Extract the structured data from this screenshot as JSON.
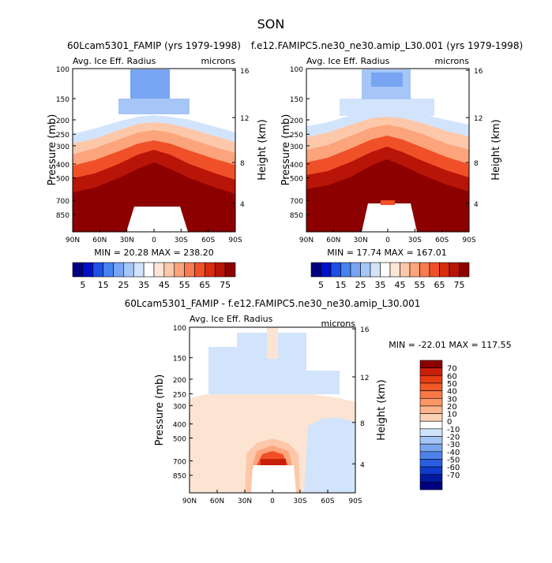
{
  "figure_title": "SON",
  "chart_data": [
    {
      "type": "heatmap",
      "id": "p1",
      "title": "60Lcam5301_FAMIP (yrs 1979-1998)",
      "left_label": "Avg. Ice Eff. Radius",
      "right_label": "microns",
      "ylabel": "Pressure (mb)",
      "y2label": "Height (km)",
      "pressure_ticks": [
        "100",
        "150",
        "200",
        "250",
        "300",
        "400",
        "500",
        "700",
        "850"
      ],
      "height_ticks": [
        "16",
        "12",
        "8",
        "4"
      ],
      "lat_ticks": [
        "90N",
        "60N",
        "30N",
        "0",
        "30S",
        "60S",
        "90S"
      ],
      "stats": "MIN =  20.28   MAX = 238.20",
      "field_range": [
        20.28,
        238.2
      ]
    },
    {
      "type": "heatmap",
      "id": "p2",
      "title": "f.e12.FAMIPC5.ne30_ne30.amip_L30.001 (yrs 1979-1998)",
      "left_label": "Avg. Ice Eff. Radius",
      "right_label": "microns",
      "ylabel": "Pressure (mb)",
      "y2label": "Height (km)",
      "pressure_ticks": [
        "100",
        "150",
        "200",
        "250",
        "300",
        "400",
        "500",
        "700",
        "850"
      ],
      "height_ticks": [
        "16",
        "12",
        "8",
        "4"
      ],
      "lat_ticks": [
        "90N",
        "60N",
        "30N",
        "0",
        "30S",
        "60S",
        "90S"
      ],
      "stats": "MIN =  17.74   MAX = 167.01",
      "field_range": [
        17.74,
        167.01
      ]
    },
    {
      "type": "heatmap",
      "id": "p3",
      "title": "60Lcam5301_FAMIP - f.e12.FAMIPC5.ne30_ne30.amip_L30.001",
      "left_label": "Avg. Ice Eff. Radius",
      "right_label": "microns",
      "ylabel": "Pressure (mb)",
      "y2label": "Height (km)",
      "pressure_ticks": [
        "100",
        "150",
        "200",
        "250",
        "300",
        "400",
        "500",
        "700",
        "850"
      ],
      "height_ticks": [
        "16",
        "12",
        "8",
        "4"
      ],
      "lat_ticks": [
        "90N",
        "60N",
        "30N",
        "0",
        "30S",
        "60S",
        "90S"
      ],
      "stats": "MIN = -22.01   MAX = 117.55",
      "field_range": [
        -22.01,
        117.55
      ]
    }
  ],
  "colorbar_abs": {
    "labels": [
      "5",
      "15",
      "25",
      "35",
      "45",
      "55",
      "65",
      "75"
    ],
    "colors": [
      "#000080",
      "#0010c8",
      "#1e50e6",
      "#4682f0",
      "#78a4f4",
      "#a6c6f8",
      "#d2e4fc",
      "#ffffff",
      "#fee6d6",
      "#fdc8aa",
      "#fca47c",
      "#f87a50",
      "#f05028",
      "#d82c0c",
      "#b81408",
      "#8c0000"
    ]
  },
  "colorbar_diff": {
    "labels": [
      "70",
      "60",
      "50",
      "40",
      "30",
      "20",
      "10",
      "0",
      "-10",
      "-20",
      "-30",
      "-40",
      "-50",
      "-60",
      "-70"
    ],
    "colors": [
      "#8c0000",
      "#c81e0a",
      "#e63c14",
      "#f05a28",
      "#f87846",
      "#fc9664",
      "#fdb48c",
      "#fdd2b4",
      "#ffffff",
      "#cfe3fb",
      "#a4c6f6",
      "#7aa6f0",
      "#4e82ea",
      "#2a5ee0",
      "#103acc",
      "#001aa0",
      "#000080"
    ]
  }
}
